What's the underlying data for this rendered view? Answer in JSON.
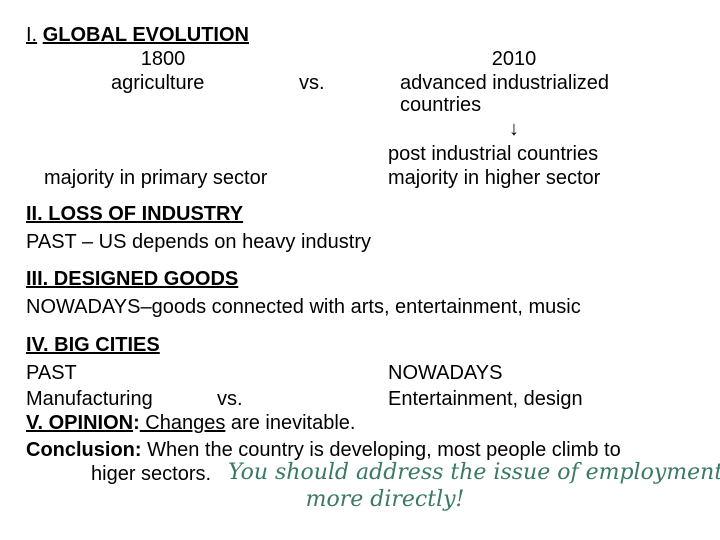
{
  "section1": {
    "heading_prefix": "I.",
    "heading_text": "GLOBAL EVOLUTION",
    "left_year": "1800",
    "left_label": "agriculture",
    "vs": "vs.",
    "right_year": "2010",
    "right_line1": "advanced industrialized",
    "right_line2": "countries",
    "arrow": "↓",
    "right_line3": "post industrial countries",
    "left_bottom": "majority in primary sector",
    "right_bottom": "majority in higher sector"
  },
  "section2": {
    "heading": "II. LOSS OF INDUSTRY",
    "text": "PAST – US depends on heavy industry"
  },
  "section3": {
    "heading": "III. DESIGNED GOODS",
    "text": "NOWADAYS–goods connected with arts, entertainment, music"
  },
  "section4": {
    "heading": "IV. BIG CITIES",
    "past": "PAST",
    "nowadays": "NOWADAYS",
    "manufacturing": "Manufacturing",
    "vs": "vs.",
    "entertainment": "Entertainment, design"
  },
  "section5": {
    "label": "V. OPINION",
    "colon": ":",
    "under_text": " Changes",
    "rest": " are inevitable."
  },
  "conclusion": {
    "label": "Conclusion:",
    "line1": " When the country is developing, most people climb to",
    "line2": "higer sectors."
  },
  "teacher_note": {
    "line1": "You should address the issue of employment",
    "line2": "more directly!",
    "color": "#3a7a62"
  }
}
